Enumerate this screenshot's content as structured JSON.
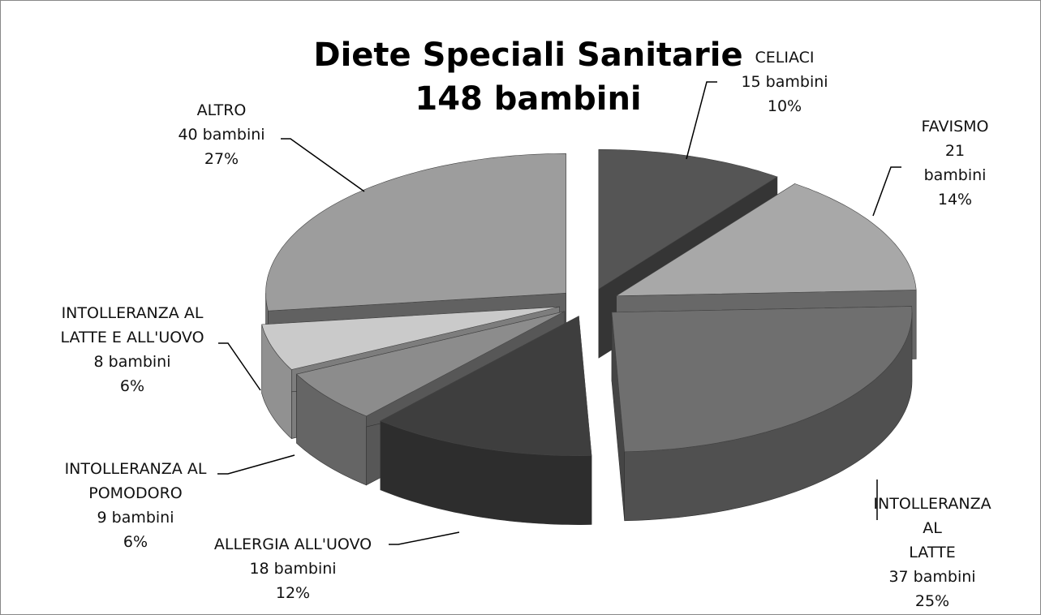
{
  "chart_data": {
    "type": "pie",
    "title": "Diete Speciali Sanitarie",
    "subtitle": "148 bambini",
    "categories": [
      "CELIACI",
      "FAVISMO",
      "INTOLLERANZA AL\nLATTE",
      "ALLERGIA ALL'UOVO",
      "INTOLLERANZA AL\nPOMODORO",
      "INTOLLERANZA AL\nLATTE E ALL'UOVO",
      "ALTRO"
    ],
    "values": [
      15,
      21,
      37,
      18,
      9,
      8,
      40
    ],
    "value_labels": [
      "15 bambini",
      "21 bambini",
      "37 bambini",
      "18 bambini",
      "9 bambini",
      "8 bambini",
      "40 bambini"
    ],
    "percentages": [
      10,
      14,
      25,
      12,
      6,
      6,
      27
    ],
    "percentage_labels": [
      "10%",
      "14%",
      "25%",
      "12%",
      "6%",
      "6%",
      "27%"
    ],
    "colors": [
      "#555555",
      "#a8a8a8",
      "#6f6f6f",
      "#3e3e3e",
      "#8c8c8c",
      "#cacaca",
      "#9d9d9d"
    ],
    "exploded": true,
    "three_d": true
  }
}
